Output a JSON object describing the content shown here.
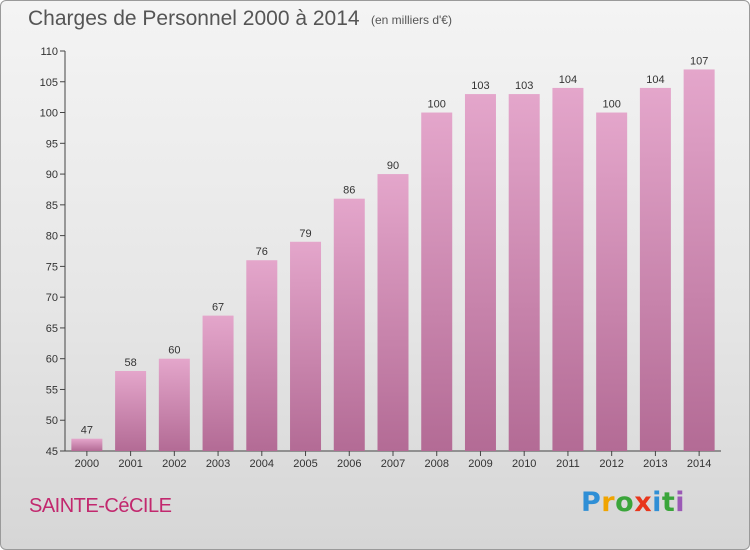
{
  "title": "Charges de Personnel 2000 à 2014",
  "subtitle": "(en milliers d'€)",
  "place": "SAINTE-CéCILE",
  "logo": {
    "letters": [
      "P",
      "r",
      "o",
      "x",
      "i",
      "t",
      "i"
    ]
  },
  "colors": {
    "bar_top": "#e4a6cb",
    "bar_bottom": "#b36b95",
    "place": "#c2286e"
  },
  "chart_data": {
    "type": "bar",
    "categories": [
      "2000",
      "2001",
      "2002",
      "2003",
      "2004",
      "2005",
      "2006",
      "2007",
      "2008",
      "2009",
      "2010",
      "2011",
      "2012",
      "2013",
      "2014"
    ],
    "values": [
      47,
      58,
      60,
      67,
      76,
      79,
      86,
      90,
      100,
      103,
      103,
      104,
      100,
      104,
      107
    ],
    "yticks": [
      45,
      50,
      55,
      60,
      65,
      70,
      75,
      80,
      85,
      90,
      95,
      100,
      105,
      110
    ],
    "ylim": [
      45,
      110
    ],
    "grid": false,
    "data_labels": true
  }
}
